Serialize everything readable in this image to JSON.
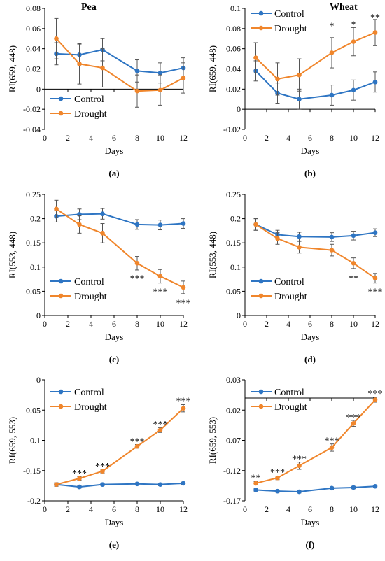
{
  "figure": {
    "xlabel": "Days",
    "control_color": "#2E75C3",
    "drought_color": "#F0862C"
  },
  "chart_data": [
    {
      "type": "line",
      "panel": "(a)",
      "title": "Pea",
      "ylabel": "RI(659, 448)",
      "xlabel": "Days",
      "xlim": [
        0,
        12
      ],
      "xticks": [
        "0",
        "2",
        "4",
        "6",
        "8",
        "10",
        "12"
      ],
      "ylim": [
        -0.04,
        0.08
      ],
      "yticks": [
        "-0.04",
        "-0.02",
        "0",
        "0.02",
        "0.04",
        "0.06",
        "0.08"
      ],
      "legend_position": "bottom-left",
      "x": [
        1,
        3,
        5,
        8,
        10,
        12
      ],
      "series": [
        {
          "name": "Control",
          "color": "#2E75C3",
          "values": [
            0.035,
            0.034,
            0.039,
            0.018,
            0.016,
            0.021
          ],
          "errors": [
            0.011,
            0.01,
            0.011,
            0.011,
            0.01,
            0.01
          ]
        },
        {
          "name": "Drought",
          "color": "#F0862C",
          "values": [
            0.05,
            0.025,
            0.021,
            -0.002,
            -0.001,
            0.011
          ],
          "errors": [
            0.02,
            0.02,
            0.019,
            0.016,
            0.015,
            0.015
          ]
        }
      ],
      "annotations": []
    },
    {
      "type": "line",
      "panel": "(b)",
      "title": "Wheat",
      "ylabel": "RI(659, 448)",
      "xlabel": "Days",
      "xlim": [
        0,
        12
      ],
      "xticks": [
        "0",
        "2",
        "4",
        "6",
        "8",
        "10",
        "12"
      ],
      "ylim": [
        -0.02,
        0.1
      ],
      "yticks": [
        "-0.02",
        "0",
        "0.02",
        "0.04",
        "0.06",
        "0.08",
        "0.1"
      ],
      "legend_position": "top-left",
      "x": [
        1,
        3,
        5,
        8,
        10,
        12
      ],
      "series": [
        {
          "name": "Control",
          "color": "#2E75C3",
          "values": [
            0.038,
            0.016,
            0.01,
            0.014,
            0.019,
            0.027
          ],
          "errors": [
            0.01,
            0.01,
            0.01,
            0.01,
            0.01,
            0.01
          ]
        },
        {
          "name": "Drought",
          "color": "#F0862C",
          "values": [
            0.051,
            0.03,
            0.034,
            0.056,
            0.067,
            0.076
          ],
          "errors": [
            0.015,
            0.016,
            0.016,
            0.015,
            0.014,
            0.013
          ]
        }
      ],
      "annotations": [
        {
          "x": 8,
          "y": 0.083,
          "text": "*"
        },
        {
          "x": 10,
          "y": 0.0845,
          "text": "*"
        },
        {
          "x": 12,
          "y": 0.0915,
          "text": "**"
        }
      ]
    },
    {
      "type": "line",
      "panel": "(c)",
      "title": "",
      "ylabel": "RI(553, 448)",
      "xlabel": "Days",
      "xlim": [
        0,
        12
      ],
      "xticks": [
        "0",
        "2",
        "4",
        "6",
        "8",
        "10",
        "12"
      ],
      "ylim": [
        0,
        0.25
      ],
      "yticks": [
        "0",
        "0.05",
        "0.1",
        "0.15",
        "0.2",
        "0.25"
      ],
      "legend_position": "bottom-left",
      "x": [
        1,
        3,
        5,
        8,
        10,
        12
      ],
      "series": [
        {
          "name": "Control",
          "color": "#2E75C3",
          "values": [
            0.205,
            0.209,
            0.21,
            0.188,
            0.187,
            0.19
          ],
          "errors": [
            0.012,
            0.011,
            0.011,
            0.01,
            0.01,
            0.01
          ]
        },
        {
          "name": "Drought",
          "color": "#F0862C",
          "values": [
            0.22,
            0.188,
            0.17,
            0.108,
            0.081,
            0.058
          ],
          "errors": [
            0.018,
            0.018,
            0.02,
            0.014,
            0.014,
            0.013
          ]
        }
      ],
      "annotations": [
        {
          "x": 8,
          "y": 0.077,
          "text": "***"
        },
        {
          "x": 10,
          "y": 0.05,
          "text": "***"
        },
        {
          "x": 12,
          "y": 0.027,
          "text": "***"
        }
      ]
    },
    {
      "type": "line",
      "panel": "(d)",
      "title": "",
      "ylabel": "RI(553, 448)",
      "xlabel": "Days",
      "xlim": [
        0,
        12
      ],
      "xticks": [
        "0",
        "2",
        "4",
        "6",
        "8",
        "10",
        "12"
      ],
      "ylim": [
        0,
        0.25
      ],
      "yticks": [
        "0",
        "0.05",
        "0.1",
        "0.15",
        "0.2",
        "0.25"
      ],
      "legend_position": "bottom-left",
      "x": [
        1,
        3,
        5,
        8,
        10,
        12
      ],
      "series": [
        {
          "name": "Control",
          "color": "#2E75C3",
          "values": [
            0.188,
            0.167,
            0.163,
            0.162,
            0.165,
            0.171
          ],
          "errors": [
            0.012,
            0.009,
            0.009,
            0.009,
            0.009,
            0.008
          ]
        },
        {
          "name": "Drought",
          "color": "#F0862C",
          "values": [
            0.188,
            0.159,
            0.141,
            0.135,
            0.108,
            0.077
          ],
          "errors": [
            0.012,
            0.012,
            0.012,
            0.012,
            0.011,
            0.01
          ]
        }
      ],
      "annotations": [
        {
          "x": 10,
          "y": 0.077,
          "text": "**"
        },
        {
          "x": 12,
          "y": 0.05,
          "text": "***"
        }
      ]
    },
    {
      "type": "line",
      "panel": "(e)",
      "title": "",
      "ylabel": "RI(659, 553)",
      "xlabel": "Days",
      "xlim": [
        0,
        12
      ],
      "xticks": [
        "0",
        "2",
        "4",
        "6",
        "8",
        "10",
        "12"
      ],
      "ylim": [
        -0.2,
        0
      ],
      "yticks": [
        "-0.2",
        "-0.15",
        "-0.1",
        "-0.05",
        "0"
      ],
      "legend_position": "top-left",
      "x": [
        1,
        3,
        5,
        8,
        10,
        12
      ],
      "series": [
        {
          "name": "Control",
          "color": "#2E75C3",
          "values": [
            -0.173,
            -0.177,
            -0.173,
            -0.172,
            -0.173,
            -0.171
          ],
          "errors": [
            0.002,
            0.002,
            0.002,
            0.002,
            0.002,
            0.002
          ]
        },
        {
          "name": "Drought",
          "color": "#F0862C",
          "values": [
            -0.173,
            -0.163,
            -0.151,
            -0.11,
            -0.083,
            -0.047
          ],
          "errors": [
            0.003,
            0.003,
            0.003,
            0.003,
            0.004,
            0.006
          ]
        }
      ],
      "annotations": [
        {
          "x": 3,
          "y": -0.154,
          "text": "***"
        },
        {
          "x": 5,
          "y": -0.142,
          "text": "***"
        },
        {
          "x": 8,
          "y": -0.101,
          "text": "***"
        },
        {
          "x": 10,
          "y": -0.073,
          "text": "***"
        },
        {
          "x": 12,
          "y": -0.034,
          "text": "***"
        }
      ]
    },
    {
      "type": "line",
      "panel": "(f)",
      "title": "",
      "ylabel": "RI(659, 553)",
      "xlabel": "Days",
      "xlim": [
        0,
        12
      ],
      "xticks": [
        "0",
        "2",
        "4",
        "6",
        "8",
        "10",
        "12"
      ],
      "ylim": [
        -0.17,
        0.03
      ],
      "yticks": [
        "-0.17",
        "-0.12",
        "-0.07",
        "-0.02",
        "0.03"
      ],
      "legend_position": "top-left",
      "x": [
        1,
        3,
        5,
        8,
        10,
        12
      ],
      "series": [
        {
          "name": "Control",
          "color": "#2E75C3",
          "values": [
            -0.152,
            -0.154,
            -0.155,
            -0.149,
            -0.148,
            -0.146
          ],
          "errors": [
            0.002,
            0.002,
            0.002,
            0.002,
            0.002,
            0.002
          ]
        },
        {
          "name": "Drought",
          "color": "#F0862C",
          "values": [
            -0.141,
            -0.132,
            -0.112,
            -0.082,
            -0.042,
            -0.003
          ],
          "errors": [
            0.003,
            0.003,
            0.006,
            0.006,
            0.005,
            0.004
          ]
        }
      ],
      "annotations": [
        {
          "x": 1,
          "y": -0.131,
          "text": "**"
        },
        {
          "x": 3,
          "y": -0.122,
          "text": "***"
        },
        {
          "x": 5,
          "y": -0.1,
          "text": "***"
        },
        {
          "x": 8,
          "y": -0.07,
          "text": "***"
        },
        {
          "x": 10,
          "y": -0.031,
          "text": "***"
        },
        {
          "x": 12,
          "y": 0.008,
          "text": "***"
        }
      ]
    }
  ]
}
